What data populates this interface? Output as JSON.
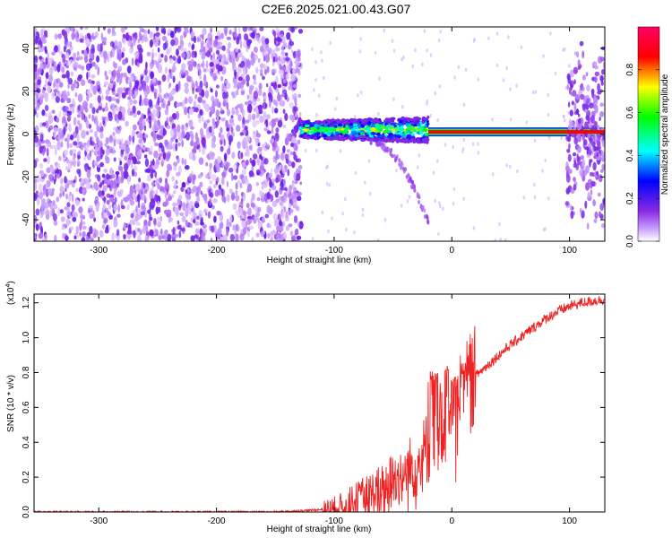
{
  "title": "C2E6.2025.021.00.43.G07",
  "chart_data": [
    {
      "type": "heatmap",
      "xlabel": "Height of straight line (km)",
      "ylabel": "Frequency (Hz)",
      "xlim": [
        -355,
        130
      ],
      "ylim": [
        -50,
        50
      ],
      "xticks": [
        -300,
        -200,
        -100,
        0,
        100
      ],
      "yticks": [
        -40,
        -20,
        0,
        20,
        40
      ],
      "colorbar": {
        "label": "Normalized spectral amplitude",
        "range": [
          0,
          1
        ],
        "ticks": [
          0.0,
          0.2,
          0.4,
          0.6,
          0.8
        ],
        "colors": [
          "#ffffff",
          "#8a2be2",
          "#0000ff",
          "#00ffff",
          "#00ff00",
          "#ffff00",
          "#ff0000",
          "#ff0066"
        ]
      },
      "regions": [
        {
          "name": "noise",
          "x": [
            -355,
            -128
          ],
          "freq": [
            -50,
            50
          ],
          "amplitude": 0.15
        },
        {
          "name": "signal-onset",
          "x": [
            -128,
            -20
          ],
          "freq_center": 2,
          "amplitude": 0.6
        },
        {
          "name": "carrier",
          "x": [
            -20,
            130
          ],
          "freq_center": 1,
          "amplitude": 1.0
        },
        {
          "name": "tail-noise",
          "x": [
            98,
            130
          ],
          "freq": [
            -45,
            45
          ],
          "amplitude": 0.2
        }
      ]
    },
    {
      "type": "line",
      "xlabel": "Height of straight line (km)",
      "ylabel": "SNR (10 * v/v)",
      "multiplier": "(x10",
      "multiplier_exp": "4",
      "multiplier_close": ")",
      "xlim": [
        -355,
        130
      ],
      "ylim": [
        0,
        1.25
      ],
      "xticks": [
        -300,
        -200,
        -100,
        0,
        100
      ],
      "yticks": [
        0.0,
        0.2,
        0.4,
        0.6,
        0.8,
        1.0,
        1.2
      ],
      "color": "#ee2222",
      "series": [
        {
          "x": [
            -355,
            -300,
            -200,
            -150,
            -120,
            -100,
            -90,
            -80,
            -70,
            -60,
            -50,
            -40,
            -30,
            -25,
            -20,
            -15,
            -10,
            -5,
            0,
            5,
            10,
            15,
            20,
            30,
            40,
            50,
            60,
            70,
            80,
            90,
            100,
            110,
            120,
            130
          ],
          "y": [
            0.0,
            0.0,
            0.0,
            0.0,
            0.01,
            0.02,
            0.04,
            0.07,
            0.1,
            0.13,
            0.18,
            0.22,
            0.28,
            0.32,
            0.38,
            0.42,
            0.5,
            0.52,
            0.55,
            0.6,
            0.66,
            0.73,
            0.78,
            0.84,
            0.9,
            0.96,
            1.01,
            1.06,
            1.11,
            1.15,
            1.18,
            1.2,
            1.21,
            1.22
          ]
        }
      ],
      "spikes": [
        {
          "x": -18,
          "y": 0.84
        },
        {
          "x": -14,
          "y": 0.8
        },
        {
          "x": -5,
          "y": 0.87
        },
        {
          "x": 2,
          "y": 0.78
        },
        {
          "x": 10,
          "y": 0.86
        }
      ]
    }
  ]
}
